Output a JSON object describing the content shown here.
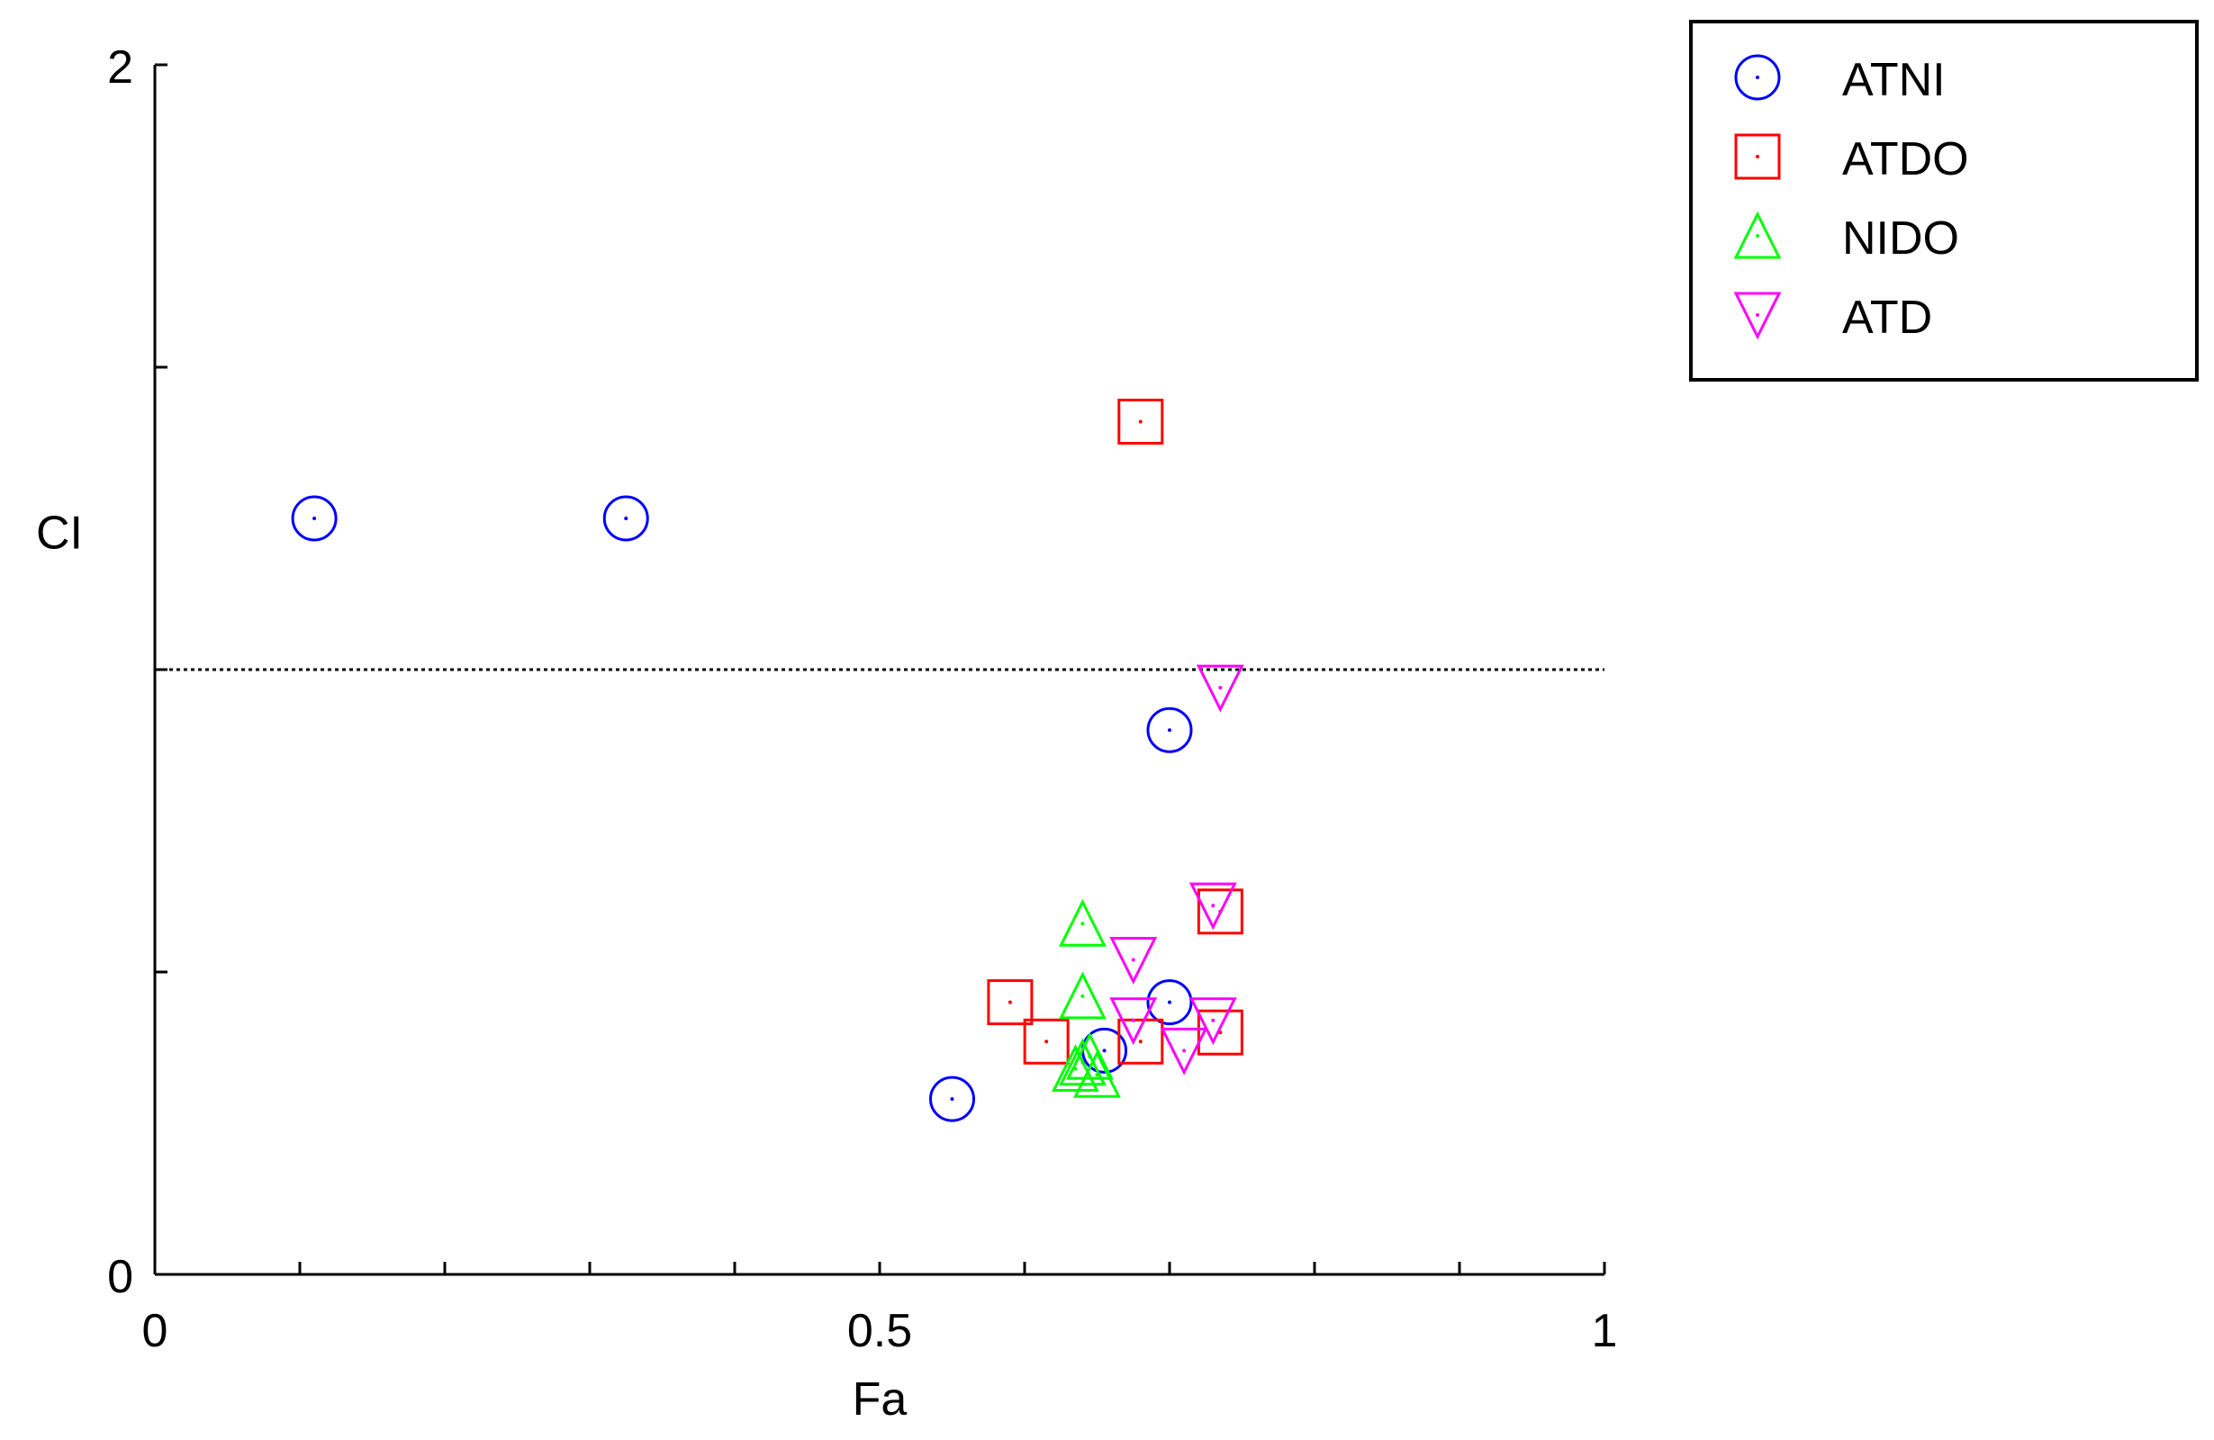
{
  "chart_data": {
    "type": "scatter",
    "xlabel": "Fa",
    "ylabel": "CI",
    "xlim": [
      0,
      1
    ],
    "ylim": [
      0,
      2
    ],
    "x_ticks": [
      0,
      0.1,
      0.2,
      0.3,
      0.4,
      0.5,
      0.6,
      0.7,
      0.8,
      0.9,
      1
    ],
    "x_tick_labels": [
      {
        "value": 0,
        "label": "0"
      },
      {
        "value": 0.5,
        "label": "0.5"
      },
      {
        "value": 1,
        "label": "1"
      }
    ],
    "y_ticks": [
      0,
      0.5,
      1,
      1.5,
      2
    ],
    "y_tick_labels": [
      {
        "value": 0,
        "label": "0"
      },
      {
        "value": 2,
        "label": "2"
      }
    ],
    "reference_line": {
      "y": 1,
      "style": "dotted"
    },
    "grid": false,
    "legend_position": "top-right",
    "series": [
      {
        "name": "ATNI",
        "marker": "circle",
        "color": "#0000ff",
        "points": [
          [
            0.11,
            1.25
          ],
          [
            0.325,
            1.25
          ],
          [
            0.7,
            0.9
          ],
          [
            0.55,
            0.29
          ],
          [
            0.655,
            0.37
          ],
          [
            0.7,
            0.45
          ]
        ]
      },
      {
        "name": "ATDO",
        "marker": "square",
        "color": "#ff0000",
        "points": [
          [
            0.68,
            1.41
          ],
          [
            0.735,
            0.6
          ],
          [
            0.59,
            0.45
          ],
          [
            0.615,
            0.385
          ],
          [
            0.68,
            0.385
          ],
          [
            0.735,
            0.4
          ]
        ]
      },
      {
        "name": "NIDO",
        "marker": "triangle-up",
        "color": "#00ff00",
        "points": [
          [
            0.64,
            0.58
          ],
          [
            0.64,
            0.46
          ],
          [
            0.645,
            0.36
          ],
          [
            0.635,
            0.34
          ],
          [
            0.65,
            0.33
          ],
          [
            0.64,
            0.35
          ]
        ]
      },
      {
        "name": "ATD",
        "marker": "triangle-down",
        "color": "#ff00ff",
        "points": [
          [
            0.735,
            0.97
          ],
          [
            0.73,
            0.61
          ],
          [
            0.675,
            0.52
          ],
          [
            0.675,
            0.42
          ],
          [
            0.73,
            0.42
          ],
          [
            0.71,
            0.37
          ]
        ]
      }
    ]
  }
}
